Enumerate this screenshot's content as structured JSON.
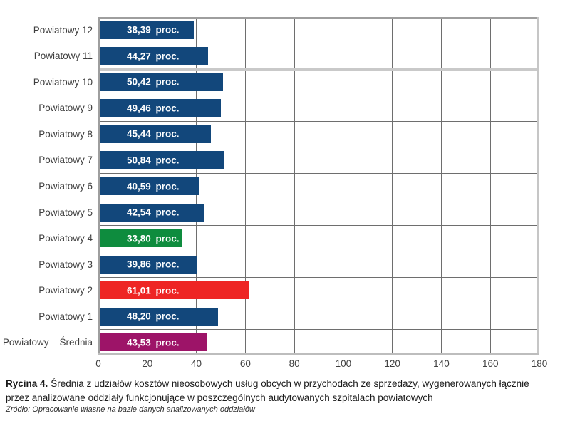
{
  "figure": {
    "caption_prefix": "Rycina 4.",
    "caption_lines": [
      "Średnia z udziałów kosztów nieosobowych usług obcych w przychodach ze sprzedaży, wygenerowanych łącznie",
      "przez analizowane oddziały funkcjonujące w poszczególnych audytowanych szpitalach powiatowych"
    ],
    "source": "Źródło: Opracowanie własne na bazie danych analizowanych oddziałów"
  },
  "colors": {
    "bar_navy": "#12477B",
    "bar_green": "#0E8C3E",
    "bar_red": "#EE2524",
    "bar_magenta": "#9D1468",
    "grid_line": "#6e6e6e",
    "axis_text": "#3f3f3f",
    "bar_label_text": "#ffffff"
  },
  "chart_data": {
    "type": "bar",
    "orientation": "horizontal",
    "title": "",
    "xlabel": "",
    "ylabel": "",
    "categories": [
      "Powiatowy 12",
      "Powiatowy 11",
      "Powiatowy 10",
      "Powiatowy 9",
      "Powiatowy 8",
      "Powiatowy 7",
      "Powiatowy 6",
      "Powiatowy 5",
      "Powiatowy 4",
      "Powiatowy 3",
      "Powiatowy 2",
      "Powiatowy 1",
      "Powiatowy – Średnia"
    ],
    "values": [
      38.39,
      44.27,
      50.42,
      49.46,
      45.44,
      50.84,
      40.59,
      42.54,
      33.8,
      39.86,
      61.01,
      48.2,
      43.53
    ],
    "bar_labels": [
      "38,39 proc.",
      "44,27 proc.",
      "50,42 proc.",
      "49,46 proc.",
      "45,44 proc.",
      "50,84 proc.",
      "40,59 proc.",
      "42,54 proc.",
      "33,80 proc.",
      "39,86 proc.",
      "61,01 proc.",
      "48,20 proc.",
      "43,53 proc."
    ],
    "bar_colors": [
      "#12477B",
      "#12477B",
      "#12477B",
      "#12477B",
      "#12477B",
      "#12477B",
      "#12477B",
      "#12477B",
      "#0E8C3E",
      "#12477B",
      "#EE2524",
      "#12477B",
      "#9D1468"
    ],
    "xlim": [
      0,
      180
    ],
    "x_ticks": [
      0,
      20,
      40,
      60,
      80,
      100,
      120,
      140,
      160,
      180
    ],
    "grid": "both",
    "legend": "none"
  }
}
